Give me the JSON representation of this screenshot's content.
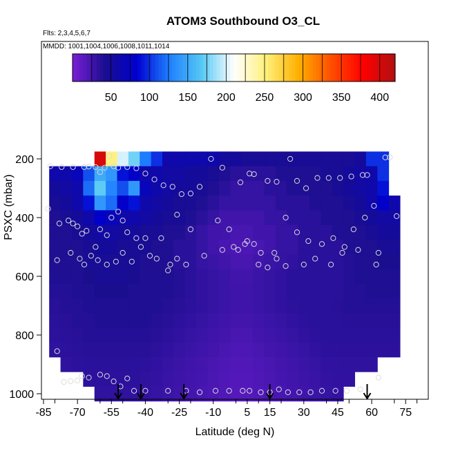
{
  "chart_data": {
    "type": "heatmap",
    "title": "ATOM3 Southbound O3_CL",
    "flights_note": "Flts: 2,3,4,5,6,7",
    "dates_note": "MMDD: 1001,1004,1006,1008,1011,1014",
    "xlabel": "Latitude (deg N)",
    "ylabel": "PSXC (mbar)",
    "xlim": [
      -85,
      85
    ],
    "ylim": [
      1000,
      100
    ],
    "x_ticks": [
      -85,
      -70,
      -55,
      -40,
      -25,
      -10,
      5,
      15,
      30,
      45,
      60,
      75
    ],
    "y_ticks": [
      200,
      400,
      600,
      800,
      1000
    ],
    "colorbar": {
      "range": [
        0,
        420
      ],
      "ticks": [
        50,
        100,
        150,
        200,
        250,
        300,
        350,
        400
      ],
      "colors": [
        "#7a1fd6",
        "#1a0e8f",
        "#0000d0",
        "#1f7fff",
        "#56c8f5",
        "#ffffff",
        "#fff07a",
        "#ffb000",
        "#ff5000",
        "#ff0000",
        "#b01010"
      ]
    },
    "lat_bins": [
      -80,
      -75,
      -70,
      -65,
      -60,
      -55,
      -50,
      -45,
      -40,
      -35,
      -30,
      -25,
      -20,
      -15,
      -10,
      -5,
      0,
      5,
      10,
      15,
      20,
      25,
      30,
      35,
      40,
      45,
      50,
      55,
      60,
      65,
      70
    ],
    "pressure_levels": [
      200,
      250,
      300,
      350,
      400,
      450,
      500,
      550,
      600,
      650,
      700,
      750,
      800,
      850,
      900,
      950,
      1000
    ],
    "o3_grid": [
      [
        null,
        null,
        null,
        null,
        400,
        250,
        200,
        175,
        125,
        100,
        60,
        60,
        60,
        60,
        60,
        50,
        50,
        45,
        45,
        45,
        45,
        45,
        45,
        45,
        45,
        45,
        45,
        50,
        100,
        100,
        null
      ],
      [
        60,
        60,
        70,
        110,
        150,
        140,
        90,
        80,
        60,
        60,
        55,
        55,
        50,
        50,
        45,
        40,
        35,
        35,
        35,
        35,
        40,
        40,
        40,
        40,
        45,
        45,
        50,
        55,
        60,
        100,
        null
      ],
      [
        50,
        55,
        60,
        120,
        170,
        130,
        110,
        140,
        70,
        60,
        55,
        50,
        50,
        45,
        40,
        35,
        30,
        30,
        30,
        35,
        35,
        40,
        40,
        40,
        40,
        45,
        50,
        55,
        60,
        90,
        null
      ],
      [
        45,
        50,
        60,
        90,
        140,
        120,
        80,
        90,
        60,
        55,
        50,
        45,
        45,
        40,
        35,
        30,
        30,
        30,
        30,
        30,
        35,
        35,
        35,
        40,
        40,
        40,
        45,
        50,
        60,
        80,
        60
      ],
      [
        40,
        45,
        50,
        60,
        80,
        70,
        60,
        60,
        55,
        50,
        45,
        45,
        40,
        35,
        30,
        25,
        25,
        25,
        25,
        30,
        30,
        35,
        35,
        35,
        40,
        40,
        40,
        45,
        50,
        55,
        55
      ],
      [
        40,
        40,
        45,
        50,
        55,
        55,
        50,
        50,
        45,
        45,
        40,
        40,
        35,
        30,
        25,
        25,
        22,
        22,
        25,
        25,
        30,
        30,
        35,
        35,
        35,
        40,
        40,
        40,
        45,
        50,
        50
      ],
      [
        40,
        40,
        40,
        45,
        50,
        50,
        45,
        45,
        45,
        40,
        40,
        35,
        35,
        30,
        25,
        22,
        20,
        20,
        22,
        25,
        30,
        30,
        35,
        35,
        35,
        35,
        40,
        40,
        40,
        45,
        45
      ],
      [
        40,
        40,
        40,
        45,
        45,
        45,
        45,
        45,
        40,
        40,
        40,
        35,
        35,
        30,
        28,
        25,
        22,
        22,
        25,
        28,
        30,
        32,
        35,
        35,
        35,
        35,
        38,
        40,
        40,
        42,
        42
      ],
      [
        40,
        40,
        40,
        42,
        45,
        45,
        45,
        42,
        40,
        40,
        40,
        38,
        35,
        32,
        30,
        28,
        25,
        25,
        28,
        30,
        32,
        35,
        35,
        35,
        35,
        35,
        38,
        40,
        40,
        40,
        40
      ],
      [
        38,
        38,
        40,
        40,
        42,
        42,
        42,
        40,
        40,
        40,
        40,
        38,
        35,
        32,
        30,
        28,
        26,
        26,
        28,
        30,
        32,
        35,
        35,
        35,
        35,
        35,
        38,
        38,
        40,
        40,
        40
      ],
      [
        36,
        38,
        38,
        40,
        40,
        40,
        40,
        40,
        40,
        40,
        38,
        36,
        34,
        32,
        30,
        28,
        26,
        26,
        28,
        30,
        32,
        34,
        35,
        35,
        35,
        36,
        38,
        38,
        38,
        38,
        38
      ],
      [
        35,
        36,
        38,
        38,
        40,
        40,
        40,
        40,
        40,
        38,
        36,
        34,
        32,
        30,
        28,
        26,
        24,
        24,
        26,
        28,
        30,
        32,
        34,
        35,
        35,
        35,
        36,
        36,
        36,
        36,
        36
      ],
      [
        34,
        35,
        36,
        38,
        38,
        38,
        38,
        38,
        38,
        36,
        34,
        32,
        30,
        28,
        26,
        24,
        22,
        22,
        24,
        26,
        28,
        30,
        32,
        34,
        35,
        35,
        35,
        35,
        35,
        35,
        35
      ],
      [
        33,
        34,
        35,
        36,
        36,
        36,
        36,
        36,
        36,
        34,
        32,
        30,
        28,
        26,
        24,
        22,
        20,
        20,
        22,
        24,
        26,
        28,
        30,
        32,
        34,
        34,
        34,
        34,
        34,
        34,
        34
      ],
      [
        null,
        33,
        34,
        35,
        35,
        35,
        35,
        35,
        34,
        32,
        30,
        28,
        26,
        24,
        22,
        20,
        18,
        18,
        20,
        22,
        24,
        26,
        28,
        30,
        32,
        33,
        33,
        33,
        33,
        null,
        null
      ],
      [
        null,
        null,
        null,
        34,
        34,
        34,
        34,
        34,
        33,
        31,
        29,
        27,
        25,
        23,
        21,
        19,
        17,
        17,
        19,
        21,
        23,
        25,
        27,
        29,
        31,
        32,
        32,
        null,
        null,
        null,
        null
      ],
      [
        null,
        null,
        null,
        null,
        33,
        33,
        33,
        33,
        32,
        30,
        28,
        26,
        24,
        22,
        20,
        18,
        16,
        16,
        18,
        20,
        22,
        24,
        26,
        28,
        30,
        31,
        null,
        null,
        null,
        null,
        null
      ]
    ],
    "sample_points": [
      [
        -82,
        225
      ],
      [
        -77,
        228
      ],
      [
        -72,
        228
      ],
      [
        -67,
        228
      ],
      [
        -65,
        226
      ],
      [
        -62,
        228
      ],
      [
        -60,
        245
      ],
      [
        -58,
        230
      ],
      [
        -56,
        190
      ],
      [
        -54,
        225
      ],
      [
        -52,
        230
      ],
      [
        -48,
        228
      ],
      [
        -44,
        232
      ],
      [
        -40,
        250
      ],
      [
        -36,
        270
      ],
      [
        -32,
        290
      ],
      [
        -28,
        295
      ],
      [
        -24,
        320
      ],
      [
        -20,
        318
      ],
      [
        -16,
        295
      ],
      [
        -11,
        200
      ],
      [
        -6,
        230
      ],
      [
        2,
        280
      ],
      [
        6,
        250
      ],
      [
        8,
        252
      ],
      [
        14,
        275
      ],
      [
        18,
        278
      ],
      [
        24,
        200
      ],
      [
        27,
        275
      ],
      [
        31,
        300
      ],
      [
        36,
        265
      ],
      [
        41,
        265
      ],
      [
        46,
        265
      ],
      [
        51,
        260
      ],
      [
        56,
        255
      ],
      [
        58,
        255
      ],
      [
        61,
        360
      ],
      [
        66,
        195
      ],
      [
        68,
        195
      ],
      [
        -83,
        370
      ],
      [
        -78,
        420
      ],
      [
        -74,
        410
      ],
      [
        -72,
        420
      ],
      [
        -70,
        430
      ],
      [
        -68,
        455
      ],
      [
        -66,
        445
      ],
      [
        -62,
        500
      ],
      [
        -60,
        440
      ],
      [
        -57,
        460
      ],
      [
        -55,
        400
      ],
      [
        -52,
        380
      ],
      [
        -50,
        410
      ],
      [
        -48,
        450
      ],
      [
        -44,
        470
      ],
      [
        -42,
        500
      ],
      [
        -38,
        530
      ],
      [
        -33,
        470
      ],
      [
        -29,
        560
      ],
      [
        -26,
        390
      ],
      [
        -20,
        440
      ],
      [
        -8,
        410
      ],
      [
        -3,
        440
      ],
      [
        1,
        510
      ],
      [
        5,
        480
      ],
      [
        10,
        560
      ],
      [
        14,
        570
      ],
      [
        18,
        540
      ],
      [
        22,
        400
      ],
      [
        27,
        450
      ],
      [
        32,
        480
      ],
      [
        38,
        490
      ],
      [
        43,
        470
      ],
      [
        47,
        520
      ],
      [
        52,
        440
      ],
      [
        57,
        400
      ],
      [
        63,
        520
      ],
      [
        71,
        395
      ],
      [
        -79,
        545
      ],
      [
        -73,
        520
      ],
      [
        -69,
        540
      ],
      [
        -67,
        560
      ],
      [
        -64,
        530
      ],
      [
        -61,
        545
      ],
      [
        -57,
        560
      ],
      [
        -53,
        550
      ],
      [
        -50,
        520
      ],
      [
        -46,
        550
      ],
      [
        -40,
        470
      ],
      [
        -35,
        540
      ],
      [
        -30,
        580
      ],
      [
        -26,
        540
      ],
      [
        -22,
        560
      ],
      [
        -14,
        530
      ],
      [
        -6,
        510
      ],
      [
        -1,
        500
      ],
      [
        4,
        490
      ],
      [
        8,
        490
      ],
      [
        11,
        520
      ],
      [
        17,
        520
      ],
      [
        22,
        565
      ],
      [
        30,
        560
      ],
      [
        35,
        540
      ],
      [
        42,
        560
      ],
      [
        48,
        500
      ],
      [
        54,
        510
      ],
      [
        62,
        560
      ],
      [
        -79,
        855
      ],
      [
        -76,
        960
      ],
      [
        -73,
        957
      ],
      [
        -70,
        955
      ],
      [
        -68,
        940
      ],
      [
        -65,
        945
      ],
      [
        -60,
        935
      ],
      [
        -57,
        940
      ],
      [
        -54,
        958
      ],
      [
        -51,
        975
      ],
      [
        -48,
        948
      ],
      [
        -45,
        990
      ],
      [
        -40,
        990
      ],
      [
        -30,
        990
      ],
      [
        -22,
        990
      ],
      [
        -16,
        995
      ],
      [
        -9,
        990
      ],
      [
        -3,
        990
      ],
      [
        3,
        990
      ],
      [
        6,
        990
      ],
      [
        11,
        995
      ],
      [
        15,
        995
      ],
      [
        19,
        985
      ],
      [
        23,
        995
      ],
      [
        28,
        995
      ],
      [
        33,
        995
      ],
      [
        38,
        990
      ],
      [
        44,
        990
      ],
      [
        49,
        990
      ],
      [
        55,
        985
      ],
      [
        63,
        945
      ]
    ],
    "arrow_latitudes": [
      -52,
      -42,
      -23,
      15,
      58
    ]
  }
}
